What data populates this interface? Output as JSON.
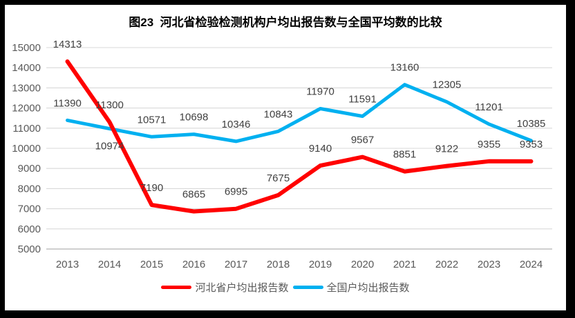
{
  "title": "图23  河北省检验检测机构户均出报告数与全国平均数的比较",
  "legend": {
    "hebei": "河北省户均出报告数",
    "national": "全国户均出报告数"
  },
  "colors": {
    "hebei_line": "#FF0000",
    "national_line": "#00B0F0",
    "gridline": "#D9D9D9",
    "axis_line": "#BFBFBF",
    "tick_text": "#595959",
    "data_label_text": "#404040",
    "frame": "#000000",
    "background": "#FFFFFF"
  },
  "chart_data": {
    "type": "line",
    "title": "图23  河北省检验检测机构户均出报告数与全国平均数的比较",
    "categories": [
      "2013",
      "2014",
      "2015",
      "2016",
      "2017",
      "2018",
      "2019",
      "2020",
      "2021",
      "2022",
      "2023",
      "2024"
    ],
    "series": [
      {
        "name": "河北省户均出报告数",
        "key": "hebei",
        "color": "#FF0000",
        "stroke_width": 6,
        "values": [
          14313,
          11300,
          7190,
          6865,
          6995,
          7675,
          9140,
          9567,
          8851,
          9122,
          9355,
          9353
        ],
        "labels_below_indices": []
      },
      {
        "name": "全国户均出报告数",
        "key": "national",
        "color": "#00B0F0",
        "stroke_width": 5,
        "values": [
          11390,
          10974,
          10571,
          10698,
          10346,
          10843,
          11970,
          11591,
          13160,
          12305,
          11201,
          10385
        ],
        "labels_below_indices": [
          1
        ]
      }
    ],
    "ylim": [
      5000,
      15000
    ],
    "ytick_step": 1000,
    "yticks": [
      5000,
      6000,
      7000,
      8000,
      9000,
      10000,
      11000,
      12000,
      13000,
      14000,
      15000
    ],
    "grid": true,
    "data_labels": true,
    "legend_position": "bottom",
    "xlabel": "",
    "ylabel": ""
  }
}
